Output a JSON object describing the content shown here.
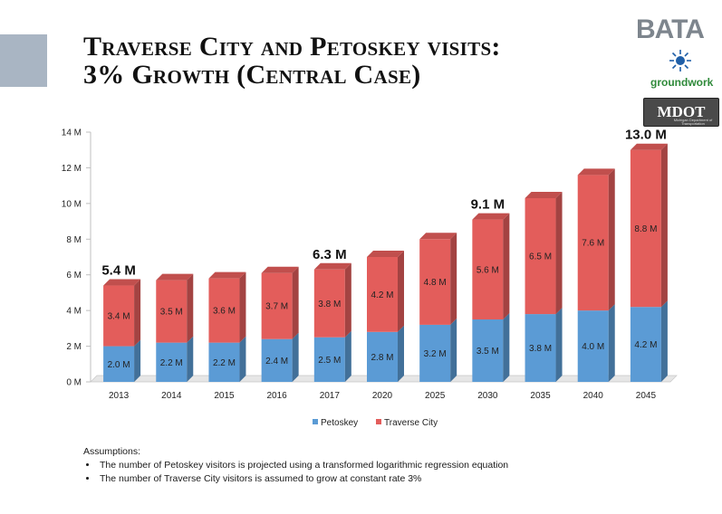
{
  "title": {
    "line1": "Traverse City and Petoskey visits:",
    "line2": "3% Growth (Central Case)"
  },
  "logos": {
    "bata": "BATA",
    "groundwork": "groundwork",
    "mdot": "MDOT",
    "mdot_sub": "Michigan Department of Transportation"
  },
  "chart_data": {
    "type": "bar",
    "stacked": true,
    "categories": [
      "2013",
      "2014",
      "2015",
      "2016",
      "2017",
      "2020",
      "2025",
      "2030",
      "2035",
      "2040",
      "2045"
    ],
    "series": [
      {
        "name": "Petoskey",
        "color": "#5b9bd5",
        "values": [
          2.0,
          2.2,
          2.2,
          2.4,
          2.5,
          2.8,
          3.2,
          3.5,
          3.8,
          4.0,
          4.2
        ],
        "labels": [
          "2.0 M",
          "2.2 M",
          "2.2 M",
          "2.4 M",
          "2.5 M",
          "2.8 M",
          "3.2 M",
          "3.5 M",
          "3.8 M",
          "4.0 M",
          "4.2 M"
        ]
      },
      {
        "name": "Traverse City",
        "color": "#e35d5b",
        "values": [
          3.4,
          3.5,
          3.6,
          3.7,
          3.8,
          4.2,
          4.8,
          5.6,
          6.5,
          7.6,
          8.8
        ],
        "labels": [
          "3.4 M",
          "3.5 M",
          "3.6 M",
          "3.7 M",
          "3.8 M",
          "4.2 M",
          "4.8 M",
          "5.6 M",
          "6.5 M",
          "7.6 M",
          "8.8 M"
        ]
      }
    ],
    "total_labels": [
      {
        "index": 0,
        "text": "5.4 M"
      },
      {
        "index": 4,
        "text": "6.3 M"
      },
      {
        "index": 7,
        "text": "9.1 M"
      },
      {
        "index": 10,
        "text": "13.0 M"
      }
    ],
    "y_ticks": [
      0,
      2,
      4,
      6,
      8,
      10,
      12,
      14
    ],
    "y_tick_labels": [
      "0 M",
      "2 M",
      "4 M",
      "6 M",
      "8 M",
      "10 M",
      "12 M",
      "14 M"
    ],
    "ylim": [
      0,
      14
    ],
    "legend_position": "bottom",
    "grid": false,
    "xlabel": "",
    "ylabel": ""
  },
  "assumptions": {
    "heading": "Assumptions:",
    "items": [
      "The number of Petoskey visitors is projected using a transformed logarithmic regression equation",
      "The number of Traverse City visitors is assumed to grow at constant rate 3%"
    ]
  }
}
